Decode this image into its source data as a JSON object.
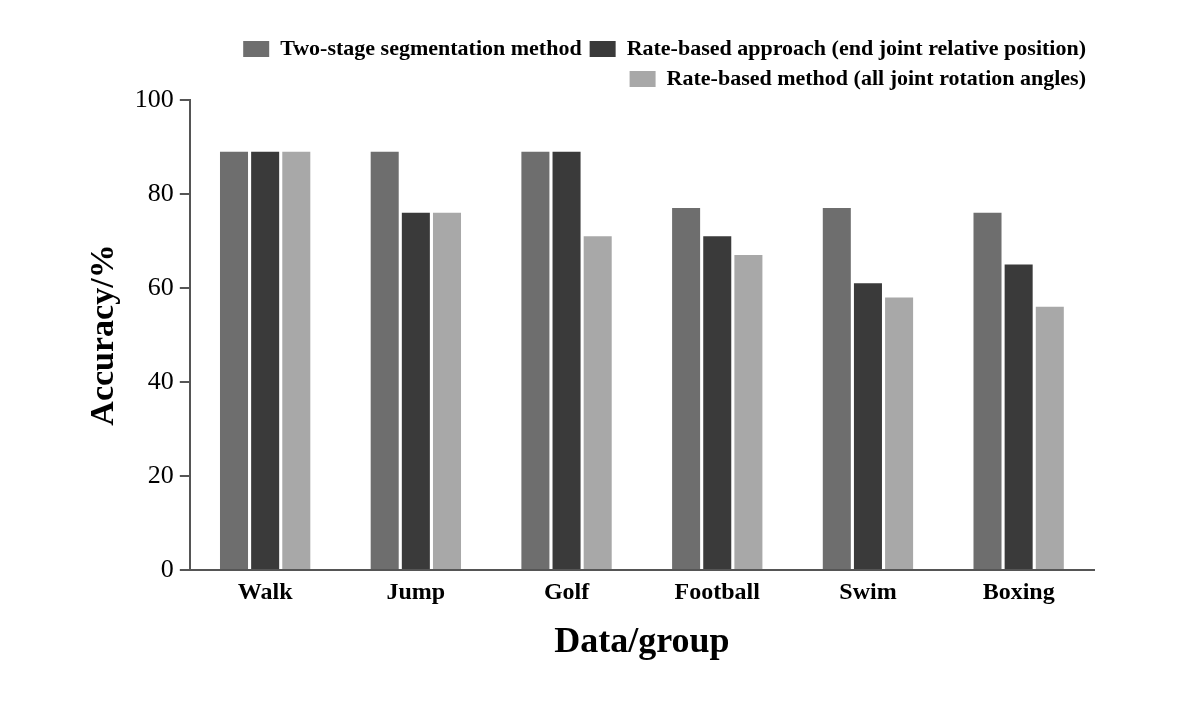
{
  "chart_data": {
    "type": "bar",
    "xlabel": "Data/group",
    "ylabel": "Accuracy/%",
    "categories": [
      "Walk",
      "Jump",
      "Golf",
      "Football",
      "Swim",
      "Boxing"
    ],
    "series": [
      {
        "name": "Two-stage segmentation method",
        "color": "#6e6e6e",
        "values": [
          89,
          89,
          89,
          77,
          77,
          76
        ]
      },
      {
        "name": "Rate-based approach (end joint relative position)",
        "color": "#3a3a3a",
        "values": [
          89,
          76,
          89,
          71,
          61,
          65
        ]
      },
      {
        "name": "Rate-based method (all joint rotation angles)",
        "color": "#a8a8a8",
        "values": [
          89,
          76,
          71,
          67,
          58,
          56
        ]
      }
    ],
    "ylim": [
      0,
      100
    ],
    "yticks": [
      0,
      20,
      40,
      60,
      80,
      100
    ],
    "grid": false,
    "legend": "top right"
  }
}
